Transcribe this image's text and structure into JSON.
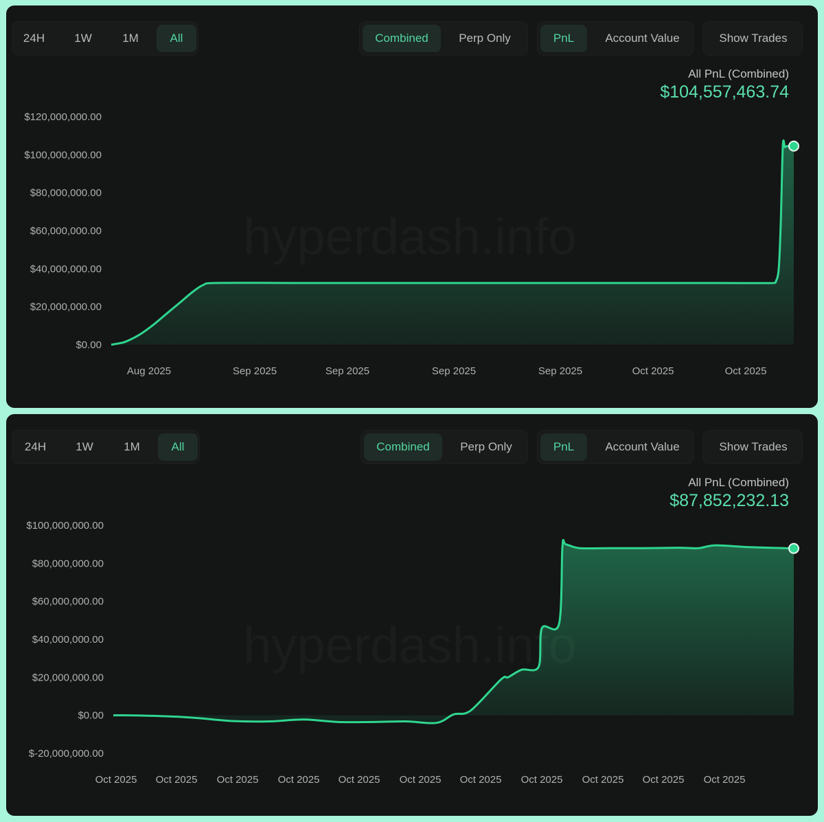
{
  "panels": [
    {
      "range_tabs": [
        "24H",
        "1W",
        "1M",
        "All"
      ],
      "range_active": 3,
      "scope_tabs": [
        "Combined",
        "Perp Only"
      ],
      "scope_active": 0,
      "metric_tabs": [
        "PnL",
        "Account Value"
      ],
      "metric_active": 0,
      "show_trades_label": "Show Trades",
      "summary_label": "All PnL (Combined)",
      "summary_value": "$104,557,463.74",
      "watermark": "hyperdash.info"
    },
    {
      "range_tabs": [
        "24H",
        "1W",
        "1M",
        "All"
      ],
      "range_active": 3,
      "scope_tabs": [
        "Combined",
        "Perp Only"
      ],
      "scope_active": 0,
      "metric_tabs": [
        "PnL",
        "Account Value"
      ],
      "metric_active": 0,
      "show_trades_label": "Show Trades",
      "summary_label": "All PnL (Combined)",
      "summary_value": "$87,852,232.13",
      "watermark": "hyperdash.info"
    }
  ],
  "colors": {
    "line": "#2fd690",
    "accent_text": "#5ae0ac",
    "panel_bg": "#141515",
    "page_bg": "#a8f5dc"
  },
  "chart_data": [
    {
      "type": "area",
      "ylim": [
        0,
        120000000
      ],
      "yticks": [
        0,
        20000000,
        40000000,
        60000000,
        80000000,
        100000000,
        120000000
      ],
      "ytick_labels": [
        "$0.00",
        "$20,000,000.00",
        "$40,000,000.00",
        "$60,000,000.00",
        "$80,000,000.00",
        "$100,000,000.00",
        "$120,000,000.00"
      ],
      "xtick_labels": [
        "Aug 2025",
        "Sep 2025",
        "Sep 2025",
        "Sep 2025",
        "Sep 2025",
        "Oct 2025",
        "Oct 2025"
      ],
      "x": [
        0,
        0.02,
        0.04,
        0.06,
        0.08,
        0.1,
        0.12,
        0.135,
        0.15,
        0.3,
        0.5,
        0.7,
        0.9,
        0.97,
        0.974,
        0.978,
        0.981,
        0.984,
        0.987,
        0.99,
        1.0
      ],
      "values": [
        0,
        1500000,
        5000000,
        10000000,
        16000000,
        22000000,
        28000000,
        31500000,
        32500000,
        32500000,
        32500000,
        32500000,
        32500000,
        32500000,
        33500000,
        40000000,
        65000000,
        105000000,
        104000000,
        104557463.74,
        104557463.74
      ]
    },
    {
      "type": "area",
      "ylim": [
        -20000000,
        100000000
      ],
      "yticks": [
        -20000000,
        0,
        20000000,
        40000000,
        60000000,
        80000000,
        100000000
      ],
      "ytick_labels": [
        "$-20,000,000.00",
        "$0.00",
        "$20,000,000.00",
        "$40,000,000.00",
        "$60,000,000.00",
        "$80,000,000.00",
        "$100,000,000.00"
      ],
      "xtick_labels": [
        "Oct 2025",
        "Oct 2025",
        "Oct 2025",
        "Oct 2025",
        "Oct 2025",
        "Oct 2025",
        "Oct 2025",
        "Oct 2025",
        "Oct 2025",
        "Oct 2025",
        "Oct 2025"
      ],
      "x": [
        0,
        0.025,
        0.08,
        0.125,
        0.175,
        0.23,
        0.28,
        0.33,
        0.38,
        0.43,
        0.475,
        0.5,
        0.525,
        0.57,
        0.58,
        0.6,
        0.625,
        0.63,
        0.655,
        0.66,
        0.665,
        0.685,
        0.73,
        0.78,
        0.83,
        0.86,
        0.885,
        0.935,
        1.0
      ],
      "values": [
        0,
        0,
        -500000,
        -1500000,
        -3000000,
        -3200000,
        -2200000,
        -3500000,
        -3500000,
        -3200000,
        -4000000,
        500000,
        2500000,
        19000000,
        20000000,
        24000000,
        25500000,
        46000000,
        48000000,
        89000000,
        90000000,
        88000000,
        88000000,
        88000000,
        88200000,
        88000000,
        89500000,
        88500000,
        87852232.13
      ]
    }
  ]
}
